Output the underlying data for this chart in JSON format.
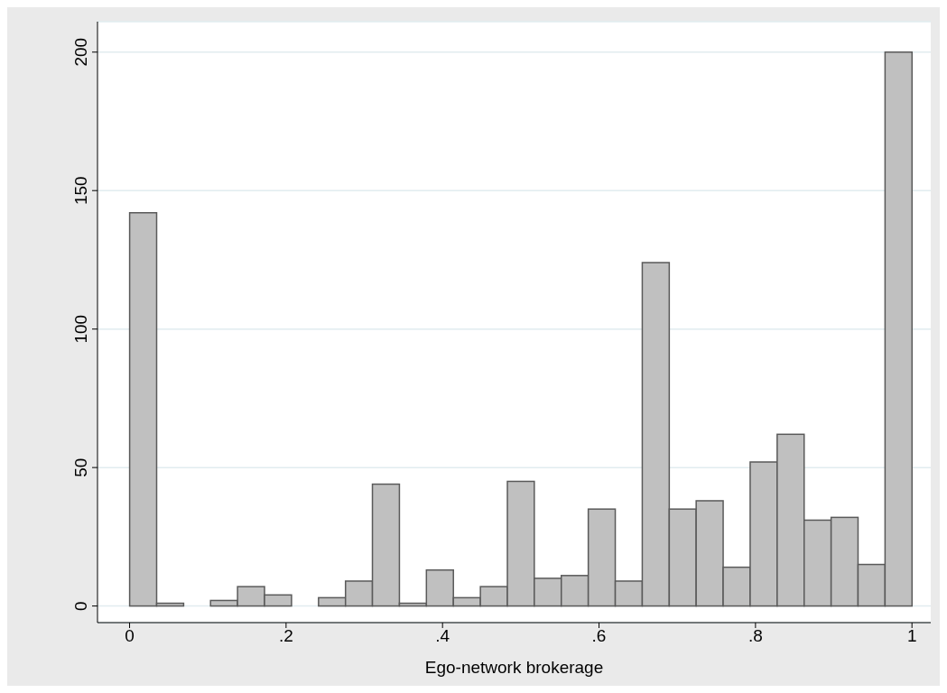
{
  "chart_data": {
    "type": "histogram",
    "xlabel": "Ego-network brokerage",
    "color": "#c0c0c0",
    "bins": [
      0,
      0.0345,
      0.069,
      0.1034,
      0.1379,
      0.1724,
      0.2069,
      0.2414,
      0.2759,
      0.3103,
      0.3448,
      0.3793,
      0.4138,
      0.4483,
      0.4828,
      0.5172,
      0.5517,
      0.5862,
      0.6207,
      0.6552,
      0.6897,
      0.7241,
      0.7586,
      0.7931,
      0.8276,
      0.8621,
      0.8966,
      0.931,
      0.9655,
      1
    ],
    "values": [
      142,
      1,
      0,
      2,
      7,
      4,
      0,
      3,
      9,
      44,
      1,
      13,
      3,
      7,
      45,
      10,
      11,
      35,
      9,
      124,
      35,
      38,
      14,
      52,
      62,
      31,
      32,
      15,
      200
    ],
    "xlim": [
      -0.041,
      1.024
    ],
    "xticks": [
      0,
      {
        "value": 0.2,
        "label": ".2"
      },
      {
        "value": 0.4,
        "label": ".4"
      },
      {
        "value": 0.6,
        "label": ".6"
      },
      {
        "value": 0.8,
        "label": ".8"
      },
      1
    ],
    "ylim": [
      -6,
      211
    ],
    "yticks": [
      0,
      50,
      100,
      150,
      200
    ],
    "grid": "y"
  }
}
